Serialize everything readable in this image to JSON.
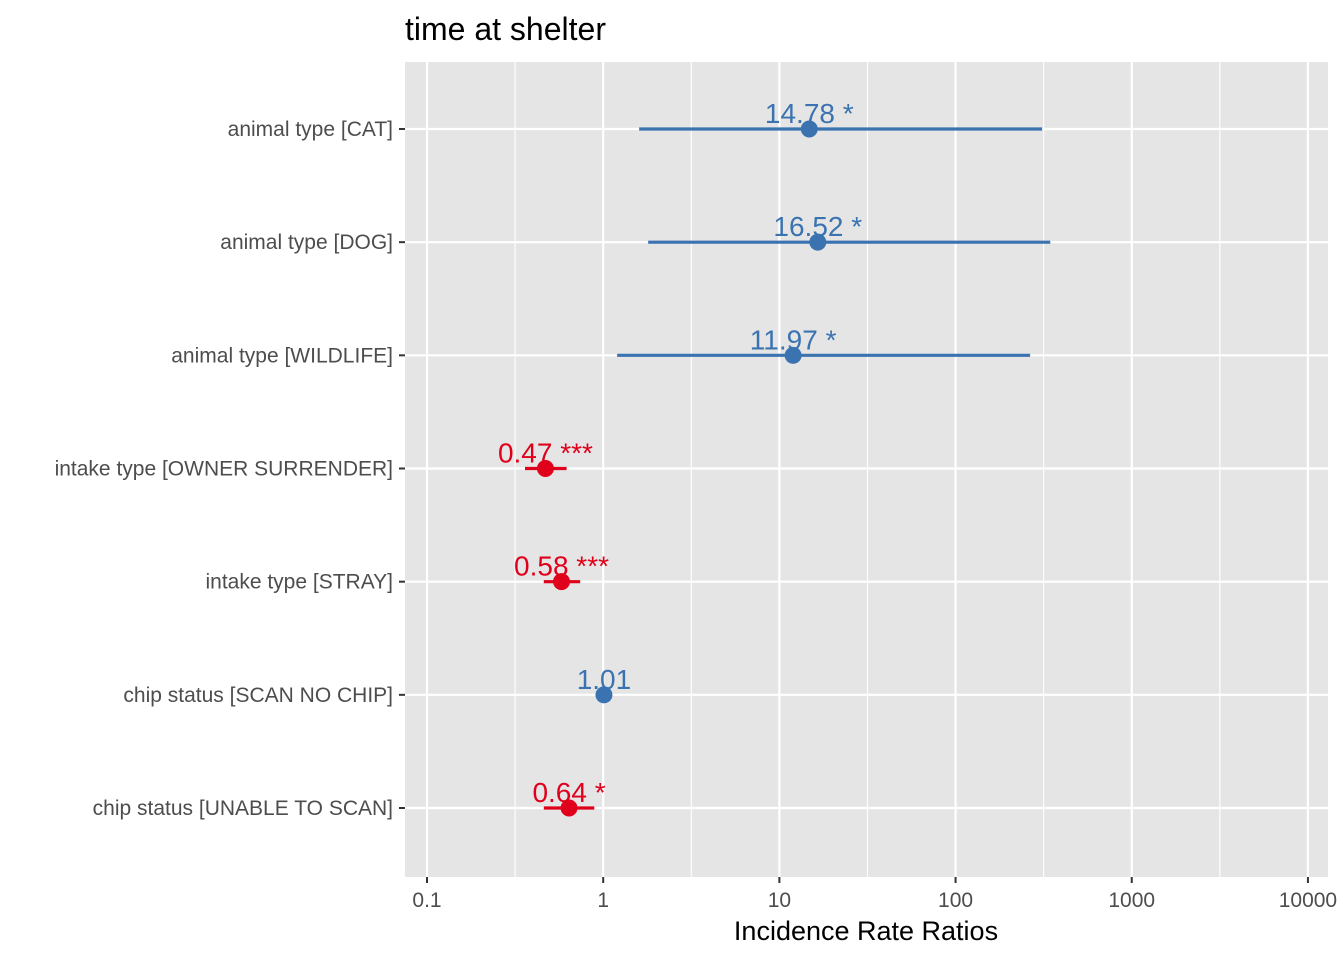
{
  "chart_data": {
    "type": "forest",
    "title": "time at shelter",
    "xlabel": "Incidence Rate Ratios",
    "x_scale": "log10",
    "xlim": [
      0.075,
      13000
    ],
    "x_ticks": [
      0.1,
      1,
      10,
      100,
      1000,
      10000
    ],
    "x_tick_labels": [
      "0.1",
      "1",
      "10",
      "100",
      "1000",
      "10000"
    ],
    "grid": true,
    "colors": {
      "positive": "#3a73b0",
      "negative": "#e0001b",
      "panel": "#e5e5e5",
      "grid": "#ffffff"
    },
    "terms": [
      {
        "label": "animal type [CAT]",
        "estimate": 14.78,
        "ci_low": 1.6,
        "ci_high": 310,
        "value_label": "14.78 *",
        "direction": "positive"
      },
      {
        "label": "animal type [DOG]",
        "estimate": 16.52,
        "ci_low": 1.8,
        "ci_high": 345,
        "value_label": "16.52 *",
        "direction": "positive"
      },
      {
        "label": "animal type [WILDLIFE]",
        "estimate": 11.97,
        "ci_low": 1.2,
        "ci_high": 265,
        "value_label": "11.97 *",
        "direction": "positive"
      },
      {
        "label": "intake type [OWNER SURRENDER]",
        "estimate": 0.47,
        "ci_low": 0.36,
        "ci_high": 0.62,
        "value_label": "0.47 ***",
        "direction": "negative"
      },
      {
        "label": "intake type [STRAY]",
        "estimate": 0.58,
        "ci_low": 0.46,
        "ci_high": 0.74,
        "value_label": "0.58 ***",
        "direction": "negative"
      },
      {
        "label": "chip status [SCAN NO CHIP]",
        "estimate": 1.01,
        "ci_low": 0.93,
        "ci_high": 1.1,
        "value_label": "1.01",
        "direction": "positive"
      },
      {
        "label": "chip status [UNABLE TO SCAN]",
        "estimate": 0.64,
        "ci_low": 0.46,
        "ci_high": 0.89,
        "value_label": "0.64 *",
        "direction": "negative"
      }
    ]
  }
}
